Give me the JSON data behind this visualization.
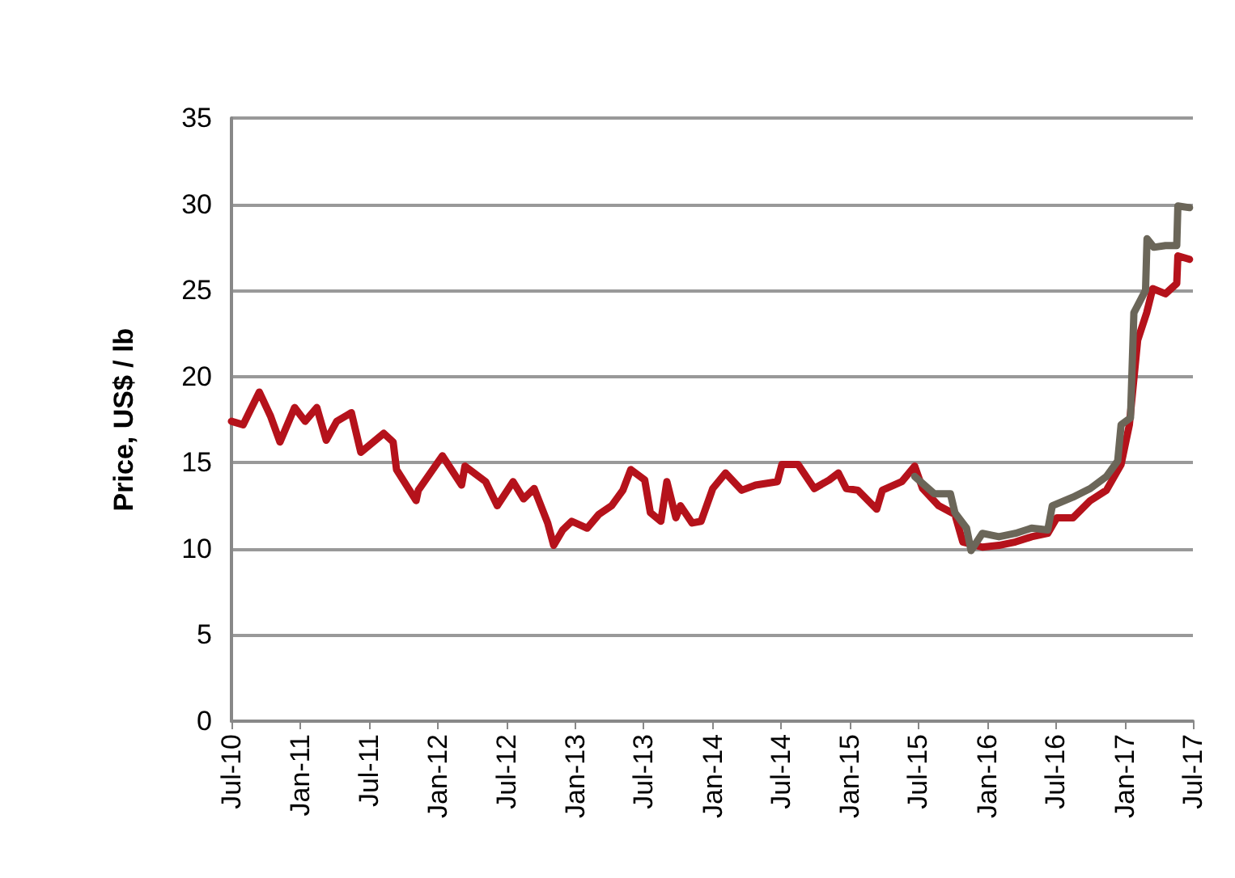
{
  "chart_data": {
    "type": "line",
    "ylabel": "Price, US$ / lb",
    "xlim": [
      "2010-07-01",
      "2017-07-01"
    ],
    "xticks": [
      {
        "value": "2010-07-01",
        "label": "Jul-10"
      },
      {
        "value": "2011-01-01",
        "label": "Jan-11"
      },
      {
        "value": "2011-07-01",
        "label": "Jul-11"
      },
      {
        "value": "2012-01-01",
        "label": "Jan-12"
      },
      {
        "value": "2012-07-01",
        "label": "Jul-12"
      },
      {
        "value": "2013-01-01",
        "label": "Jan-13"
      },
      {
        "value": "2013-07-01",
        "label": "Jul-13"
      },
      {
        "value": "2014-01-01",
        "label": "Jan-14"
      },
      {
        "value": "2014-07-01",
        "label": "Jul-14"
      },
      {
        "value": "2015-01-01",
        "label": "Jan-15"
      },
      {
        "value": "2015-07-01",
        "label": "Jul-15"
      },
      {
        "value": "2016-01-01",
        "label": "Jan-16"
      },
      {
        "value": "2016-07-01",
        "label": "Jul-16"
      },
      {
        "value": "2017-01-01",
        "label": "Jan-17"
      },
      {
        "value": "2017-07-01",
        "label": "Jul-17"
      }
    ],
    "ylim": [
      0,
      35
    ],
    "yticks": [
      0,
      5,
      10,
      15,
      20,
      25,
      30,
      35
    ],
    "grid": "y",
    "legend": false,
    "marker": "none",
    "line_style": "solid",
    "series": [
      {
        "color": "#b5121b",
        "x": [
          "2010-07-01",
          "2010-08-01",
          "2010-09-13",
          "2010-10-13",
          "2010-11-07",
          "2010-12-16",
          "2011-01-13",
          "2011-02-13",
          "2011-03-10",
          "2011-04-07",
          "2011-05-16",
          "2011-06-10",
          "2011-08-10",
          "2011-09-04",
          "2011-09-13",
          "2011-11-04",
          "2011-11-10",
          "2012-01-13",
          "2012-03-04",
          "2012-03-13",
          "2012-05-07",
          "2012-06-07",
          "2012-07-19",
          "2012-08-16",
          "2012-09-13",
          "2012-10-19",
          "2012-11-04",
          "2012-11-28",
          "2012-12-22",
          "2013-02-01",
          "2013-03-04",
          "2013-04-07",
          "2013-05-07",
          "2013-05-28",
          "2013-07-04",
          "2013-07-19",
          "2013-08-16",
          "2013-09-01",
          "2013-09-25",
          "2013-10-07",
          "2013-11-07",
          "2013-12-01",
          "2014-01-01",
          "2014-02-04",
          "2014-03-19",
          "2014-04-25",
          "2014-06-22",
          "2014-07-04",
          "2014-08-16",
          "2014-09-28",
          "2014-11-07",
          "2014-12-01",
          "2014-12-22",
          "2015-01-22",
          "2015-03-13",
          "2015-03-28",
          "2015-05-19",
          "2015-06-22",
          "2015-07-13",
          "2015-08-25",
          "2015-10-07",
          "2015-10-28",
          "2015-12-19",
          "2016-02-01",
          "2016-03-16",
          "2016-04-28",
          "2016-06-10",
          "2016-07-04",
          "2016-08-16",
          "2016-10-01",
          "2016-11-13",
          "2016-12-22",
          "2017-01-13",
          "2017-02-04",
          "2017-02-28",
          "2017-03-16",
          "2017-04-19",
          "2017-05-19",
          "2017-05-22",
          "2017-06-22"
        ],
        "values": [
          17.4,
          17.2,
          19.1,
          17.7,
          16.2,
          18.2,
          17.4,
          18.2,
          16.3,
          17.4,
          17.9,
          15.6,
          16.7,
          16.2,
          14.6,
          12.8,
          13.4,
          15.4,
          13.7,
          14.8,
          13.9,
          12.5,
          13.9,
          12.9,
          13.5,
          11.5,
          10.2,
          11.1,
          11.6,
          11.2,
          12.0,
          12.5,
          13.4,
          14.6,
          14.0,
          12.1,
          11.6,
          13.9,
          11.8,
          12.5,
          11.5,
          11.6,
          13.5,
          14.4,
          13.4,
          13.7,
          13.9,
          14.9,
          14.9,
          13.5,
          14.0,
          14.4,
          13.5,
          13.4,
          12.3,
          13.4,
          13.9,
          14.8,
          13.5,
          12.5,
          12.0,
          10.4,
          10.1,
          10.2,
          10.4,
          10.7,
          10.9,
          11.8,
          11.8,
          12.8,
          13.4,
          14.9,
          17.2,
          22.1,
          23.7,
          25.1,
          24.8,
          25.4,
          27.0,
          26.8
        ]
      },
      {
        "color": "#6b6659",
        "x": [
          "2015-06-22",
          "2015-08-13",
          "2015-09-25",
          "2015-10-07",
          "2015-11-07",
          "2015-11-19",
          "2015-12-19",
          "2016-02-01",
          "2016-03-16",
          "2016-04-28",
          "2016-06-10",
          "2016-06-22",
          "2016-08-16",
          "2016-10-01",
          "2016-11-13",
          "2016-12-13",
          "2016-12-22",
          "2017-01-16",
          "2017-01-25",
          "2017-02-25",
          "2017-03-01",
          "2017-03-19",
          "2017-04-19",
          "2017-05-19",
          "2017-05-22",
          "2017-06-22"
        ],
        "values": [
          14.2,
          13.2,
          13.2,
          12.1,
          11.2,
          9.9,
          10.9,
          10.7,
          10.9,
          11.2,
          11.1,
          12.5,
          13.0,
          13.5,
          14.2,
          15.1,
          17.2,
          17.6,
          23.7,
          25.0,
          28.0,
          27.5,
          27.6,
          27.6,
          29.9,
          29.8
        ]
      }
    ]
  }
}
